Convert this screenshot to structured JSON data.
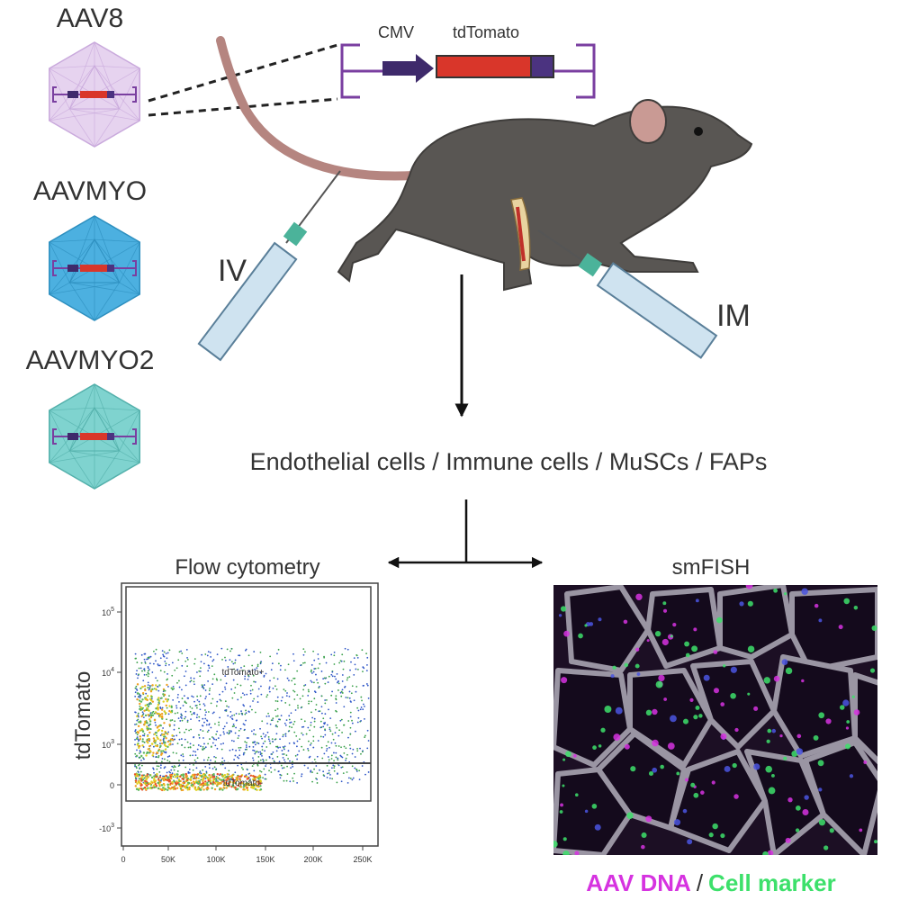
{
  "vectors": [
    {
      "label": "AAV8"
    },
    {
      "label": "AAVMYO"
    },
    {
      "label": "AAVMYO2"
    }
  ],
  "construct": {
    "promoter": "CMV",
    "reporter": "tdTomato"
  },
  "routes": {
    "iv": "IV",
    "im": "IM"
  },
  "cell_types": "Endothelial cells / Immune cells / MuSCs / FAPs",
  "flow_cytometry": {
    "title": "Flow cytometry",
    "y_label": "tdTomato",
    "gates": [
      "tdTomato+",
      "tdTomato-"
    ],
    "x_ticks": [
      "0",
      "50K",
      "100K",
      "150K",
      "200K",
      "250K"
    ],
    "y_ticks": [
      {
        "base": "10",
        "exp": "5"
      },
      {
        "base": "10",
        "exp": "4"
      },
      {
        "base": "10",
        "exp": "3"
      },
      {
        "base": "0"
      },
      {
        "base": "-10",
        "exp": "3"
      }
    ]
  },
  "smfish": {
    "title": "smFISH",
    "legend": [
      "AAV DNA",
      "/",
      "Cell marker"
    ]
  }
}
